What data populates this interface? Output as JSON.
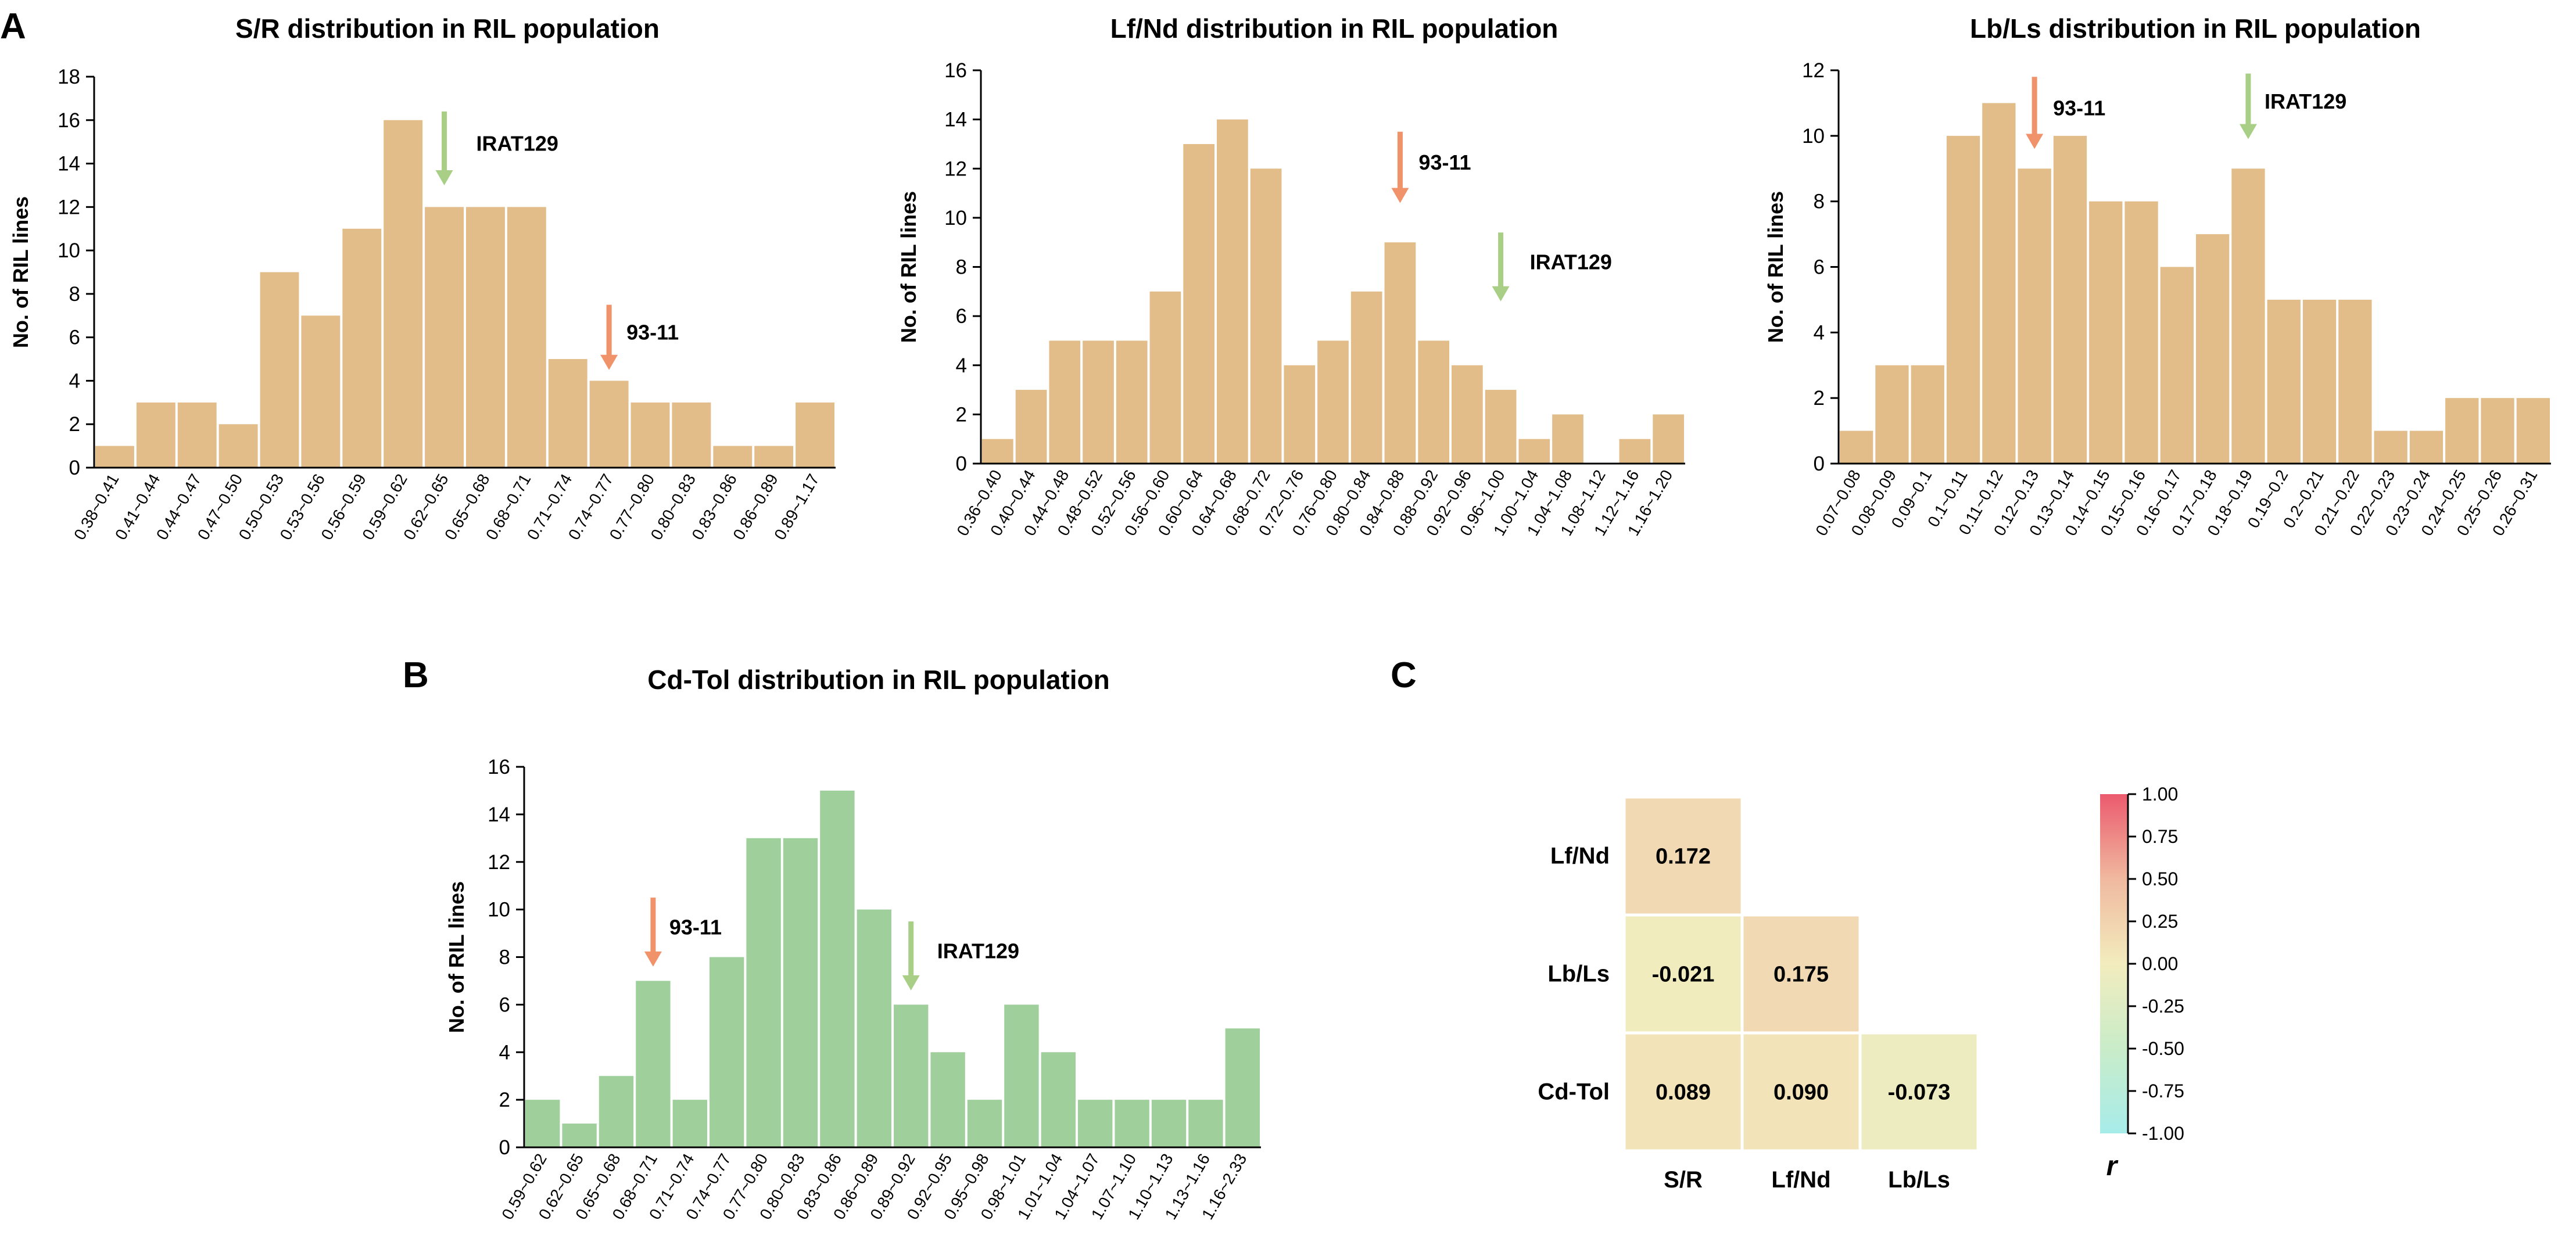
{
  "panel_labels": {
    "a": "A",
    "b": "B",
    "c": "C"
  },
  "chart_data": [
    {
      "type": "bar",
      "title": "S/R distribution in RIL population",
      "ylabel": "No. of RIL lines",
      "ylim": [
        0,
        18
      ],
      "ytick_step": 2,
      "bar_color": "#e2bd8a",
      "categories": [
        "0.38~0.41",
        "0.41~0.44",
        "0.44~0.47",
        "0.47~0.50",
        "0.50~0.53",
        "0.53~0.56",
        "0.56~0.59",
        "0.59~0.62",
        "0.62~0.65",
        "0.65~0.68",
        "0.68~0.71",
        "0.71~0.74",
        "0.74~0.77",
        "0.77~0.80",
        "0.80~0.83",
        "0.83~0.86",
        "0.86~0.89",
        "0.89~1.17"
      ],
      "values": [
        1,
        3,
        3,
        2,
        9,
        7,
        11,
        16,
        12,
        12,
        12,
        5,
        4,
        3,
        3,
        1,
        1,
        3
      ],
      "annotations": [
        {
          "label": "IRAT129",
          "bin": 8,
          "tip_y": 13,
          "len": 3.4,
          "color": "#a9cf86"
        },
        {
          "label": "93-11",
          "bin": 12,
          "tip_y": 4.5,
          "len": 3.0,
          "color": "#f0936a"
        }
      ]
    },
    {
      "type": "bar",
      "title": "Lf/Nd distribution in RIL population",
      "ylabel": "No. of RIL lines",
      "ylim": [
        0,
        16
      ],
      "ytick_step": 2,
      "bar_color": "#e2bd8a",
      "categories": [
        "0.36~0.40",
        "0.40~0.44",
        "0.44~0.48",
        "0.48~0.52",
        "0.52~0.56",
        "0.56~0.60",
        "0.60~0.64",
        "0.64~0.68",
        "0.68~0.72",
        "0.72~0.76",
        "0.76~0.80",
        "0.80~0.84",
        "0.84~0.88",
        "0.88~0.92",
        "0.92~0.96",
        "0.96~1.00",
        "1.00~1.04",
        "1.04~1.08",
        "1.08~1.12",
        "1.12~1.16",
        "1.16~1.20"
      ],
      "values": [
        1,
        3,
        5,
        5,
        5,
        7,
        13,
        14,
        12,
        4,
        5,
        7,
        9,
        5,
        4,
        3,
        1,
        2,
        0,
        1,
        2
      ],
      "annotations": [
        {
          "label": "93-11",
          "bin": 12,
          "tip_y": 10.6,
          "len": 2.9,
          "color": "#f0936a"
        },
        {
          "label": "IRAT129",
          "bin": 15,
          "tip_y": 6.6,
          "len": 2.8,
          "color": "#a9cf86"
        }
      ]
    },
    {
      "type": "bar",
      "title": "Lb/Ls distribution in RIL population",
      "ylabel": "No. of RIL lines",
      "ylim": [
        0,
        12
      ],
      "ytick_step": 2,
      "bar_color": "#e2bd8a",
      "categories": [
        "0.07~0.08",
        "0.08~0.09",
        "0.09~0.1",
        "0.1~0.11",
        "0.11~0.12",
        "0.12~0.13",
        "0.13~0.14",
        "0.14~0.15",
        "0.15~0.16",
        "0.16~0.17",
        "0.17~0.18",
        "0.18~0.19",
        "0.19~0.2",
        "0.2~0.21",
        "0.21~0.22",
        "0.22~0.23",
        "0.23~0.24",
        "0.24~0.25",
        "0.25~0.26",
        "0.26~0.31"
      ],
      "values": [
        1,
        3,
        3,
        10,
        11,
        9,
        10,
        8,
        8,
        6,
        7,
        9,
        5,
        5,
        5,
        1,
        1,
        2,
        2,
        2
      ],
      "annotations": [
        {
          "label": "93-11",
          "bin": 5,
          "tip_y": 9.6,
          "len": 2.2,
          "color": "#f0936a"
        },
        {
          "label": "IRAT129",
          "bin": 11,
          "tip_y": 9.9,
          "len": 2.0,
          "color": "#a9cf86"
        }
      ]
    },
    {
      "type": "bar",
      "title": "Cd-Tol distribution in RIL population",
      "ylabel": "No. of RIL lines",
      "ylim": [
        0,
        16
      ],
      "ytick_step": 2,
      "bar_color": "#9fd09c",
      "categories": [
        "0.59~0.62",
        "0.62~0.65",
        "0.65~0.68",
        "0.68~0.71",
        "0.71~0.74",
        "0.74~0.77",
        "0.77~0.80",
        "0.80~0.83",
        "0.83~0.86",
        "0.86~0.89",
        "0.89~0.92",
        "0.92~0.95",
        "0.95~0.98",
        "0.98~1.01",
        "1.01~1.04",
        "1.04~1.07",
        "1.07~1.10",
        "1.10~1.13",
        "1.13~1.16",
        "1.16~2.33"
      ],
      "values": [
        2,
        1,
        3,
        7,
        2,
        8,
        13,
        13,
        15,
        10,
        6,
        4,
        2,
        6,
        4,
        2,
        2,
        2,
        2,
        5
      ],
      "annotations": [
        {
          "label": "93-11",
          "bin": 3,
          "tip_y": 7.6,
          "len": 2.9,
          "color": "#f0936a"
        },
        {
          "label": "IRAT129",
          "bin": 10,
          "tip_y": 6.6,
          "len": 2.9,
          "color": "#a9cf86"
        }
      ]
    },
    {
      "type": "heatmap",
      "row_labels": [
        "Lf/Nd",
        "Lb/Ls",
        "Cd-Tol"
      ],
      "col_labels": [
        "S/R",
        "Lf/Nd",
        "Lb/Ls"
      ],
      "values": [
        [
          "0.172",
          null,
          null
        ],
        [
          "-0.021",
          "0.175",
          null
        ],
        [
          "0.089",
          "0.090",
          "-0.073"
        ]
      ],
      "colorbar": {
        "label": "r",
        "range": [
          -1,
          1
        ],
        "ticks": [
          "1.00",
          "0.75",
          "0.50",
          "0.25",
          "0.00",
          "-0.25",
          "-0.50",
          "-0.75",
          "-1.00"
        ],
        "stops": [
          "#eb5a6e",
          "#f0b99f",
          "#f2ecbe",
          "#c9ecc9",
          "#a7ecea"
        ]
      }
    }
  ]
}
